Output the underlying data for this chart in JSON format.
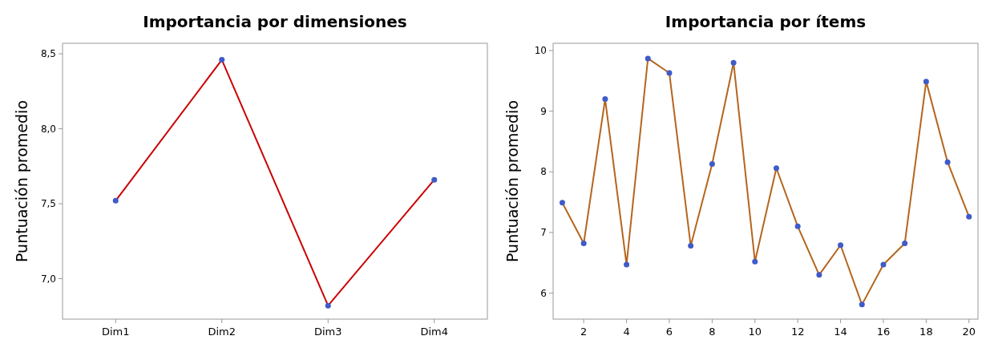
{
  "chart_data": [
    {
      "type": "line",
      "title": "Importancia por dimensiones",
      "ylabel": "Puntuación promedio",
      "categories": [
        "Dim1",
        "Dim2",
        "Dim3",
        "Dim4"
      ],
      "series": [
        {
          "color": "#cc0000",
          "values": [
            7.52,
            8.46,
            6.82,
            7.66
          ]
        }
      ],
      "marker": "circle",
      "ylim": [
        6.73,
        8.57
      ],
      "yticks": [
        {
          "value": 7,
          "label": "7,0"
        },
        {
          "value": 7.5,
          "label": "7,5"
        },
        {
          "value": 8,
          "label": "8,0"
        },
        {
          "value": 8.5,
          "label": "8,5"
        }
      ]
    },
    {
      "type": "line",
      "title": "Importancia por ítems",
      "ylabel": "Puntuación promedio",
      "x": [
        1,
        2,
        3,
        4,
        5,
        6,
        7,
        8,
        9,
        10,
        11,
        12,
        13,
        14,
        15,
        16,
        17,
        18,
        19,
        20
      ],
      "series": [
        {
          "color": "#b5651d",
          "values": [
            7.49,
            6.82,
            9.2,
            6.47,
            9.87,
            9.63,
            6.78,
            8.13,
            9.8,
            6.52,
            8.06,
            7.1,
            6.3,
            6.79,
            5.81,
            6.47,
            6.82,
            9.49,
            8.16,
            7.26
          ]
        }
      ],
      "marker": "circle",
      "xlim": [
        0.57,
        20.42
      ],
      "xticks": [
        2,
        4,
        6,
        8,
        10,
        12,
        14,
        16,
        18,
        20
      ],
      "ylim": [
        5.57,
        10.12
      ],
      "yticks": [
        6,
        7,
        8,
        9,
        10
      ]
    }
  ]
}
